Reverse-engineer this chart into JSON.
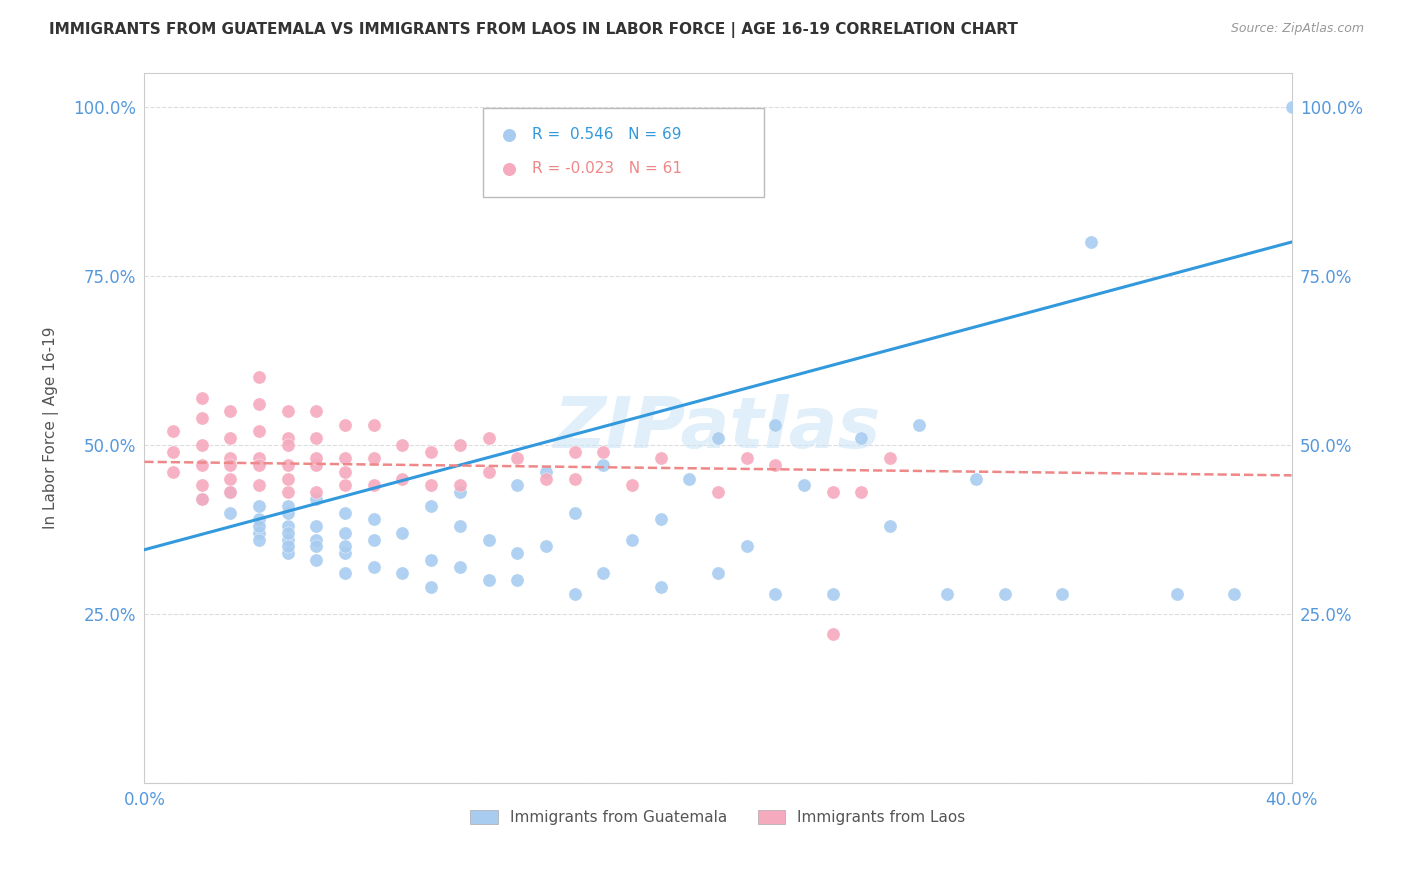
{
  "title": "IMMIGRANTS FROM GUATEMALA VS IMMIGRANTS FROM LAOS IN LABOR FORCE | AGE 16-19 CORRELATION CHART",
  "source": "Source: ZipAtlas.com",
  "ylabel": "In Labor Force | Age 16-19",
  "xlim": [
    0.0,
    0.4
  ],
  "ylim": [
    0.0,
    1.05
  ],
  "yticks": [
    0.0,
    0.25,
    0.5,
    0.75,
    1.0
  ],
  "ytick_labels": [
    "",
    "25.0%",
    "50.0%",
    "75.0%",
    "100.0%"
  ],
  "xticks": [
    0.0,
    0.1,
    0.2,
    0.3,
    0.4
  ],
  "xtick_labels": [
    "0.0%",
    "",
    "",
    "",
    "40.0%"
  ],
  "watermark": "ZIPatlas",
  "blue_color": "#A8CCF0",
  "pink_color": "#F5AABE",
  "blue_line_color": "#3399DD",
  "pink_line_color": "#EE8888",
  "grid_color": "#DDDDDD",
  "title_color": "#333333",
  "axis_label_color": "#555555",
  "tick_label_color": "#5599DD",
  "guatemala_x": [
    0.02,
    0.03,
    0.03,
    0.04,
    0.04,
    0.04,
    0.04,
    0.04,
    0.05,
    0.05,
    0.05,
    0.05,
    0.05,
    0.05,
    0.05,
    0.06,
    0.06,
    0.06,
    0.06,
    0.06,
    0.07,
    0.07,
    0.07,
    0.07,
    0.07,
    0.08,
    0.08,
    0.08,
    0.09,
    0.09,
    0.1,
    0.1,
    0.1,
    0.11,
    0.11,
    0.11,
    0.12,
    0.12,
    0.13,
    0.13,
    0.13,
    0.14,
    0.14,
    0.15,
    0.15,
    0.16,
    0.16,
    0.17,
    0.18,
    0.18,
    0.19,
    0.2,
    0.2,
    0.21,
    0.22,
    0.22,
    0.23,
    0.24,
    0.25,
    0.26,
    0.27,
    0.28,
    0.29,
    0.3,
    0.32,
    0.33,
    0.36,
    0.38,
    0.4
  ],
  "guatemala_y": [
    0.42,
    0.4,
    0.43,
    0.37,
    0.39,
    0.41,
    0.36,
    0.38,
    0.34,
    0.36,
    0.38,
    0.4,
    0.41,
    0.35,
    0.37,
    0.33,
    0.36,
    0.38,
    0.42,
    0.35,
    0.31,
    0.34,
    0.37,
    0.4,
    0.35,
    0.32,
    0.36,
    0.39,
    0.31,
    0.37,
    0.29,
    0.33,
    0.41,
    0.32,
    0.38,
    0.43,
    0.3,
    0.36,
    0.3,
    0.44,
    0.34,
    0.35,
    0.46,
    0.28,
    0.4,
    0.31,
    0.47,
    0.36,
    0.29,
    0.39,
    0.45,
    0.31,
    0.51,
    0.35,
    0.28,
    0.53,
    0.44,
    0.28,
    0.51,
    0.38,
    0.53,
    0.28,
    0.45,
    0.28,
    0.28,
    0.8,
    0.28,
    0.28,
    1.0
  ],
  "laos_x": [
    0.01,
    0.01,
    0.01,
    0.02,
    0.02,
    0.02,
    0.02,
    0.02,
    0.02,
    0.03,
    0.03,
    0.03,
    0.03,
    0.03,
    0.03,
    0.04,
    0.04,
    0.04,
    0.04,
    0.04,
    0.04,
    0.05,
    0.05,
    0.05,
    0.05,
    0.05,
    0.05,
    0.06,
    0.06,
    0.06,
    0.06,
    0.06,
    0.07,
    0.07,
    0.07,
    0.07,
    0.08,
    0.08,
    0.08,
    0.09,
    0.09,
    0.1,
    0.1,
    0.11,
    0.11,
    0.12,
    0.12,
    0.13,
    0.14,
    0.15,
    0.15,
    0.16,
    0.17,
    0.18,
    0.2,
    0.21,
    0.22,
    0.24,
    0.24,
    0.25,
    0.26
  ],
  "laos_y": [
    0.46,
    0.49,
    0.52,
    0.44,
    0.47,
    0.5,
    0.54,
    0.57,
    0.42,
    0.45,
    0.48,
    0.51,
    0.55,
    0.43,
    0.47,
    0.44,
    0.48,
    0.52,
    0.56,
    0.6,
    0.47,
    0.43,
    0.47,
    0.51,
    0.55,
    0.45,
    0.5,
    0.43,
    0.47,
    0.51,
    0.55,
    0.48,
    0.44,
    0.48,
    0.53,
    0.46,
    0.44,
    0.48,
    0.53,
    0.45,
    0.5,
    0.44,
    0.49,
    0.44,
    0.5,
    0.46,
    0.51,
    0.48,
    0.45,
    0.45,
    0.49,
    0.49,
    0.44,
    0.48,
    0.43,
    0.48,
    0.47,
    0.43,
    0.22,
    0.43,
    0.48
  ],
  "blue_line_x0": 0.0,
  "blue_line_y0": 0.345,
  "blue_line_x1": 0.4,
  "blue_line_y1": 0.8,
  "pink_line_x0": 0.0,
  "pink_line_y0": 0.475,
  "pink_line_x1": 0.4,
  "pink_line_y1": 0.455
}
